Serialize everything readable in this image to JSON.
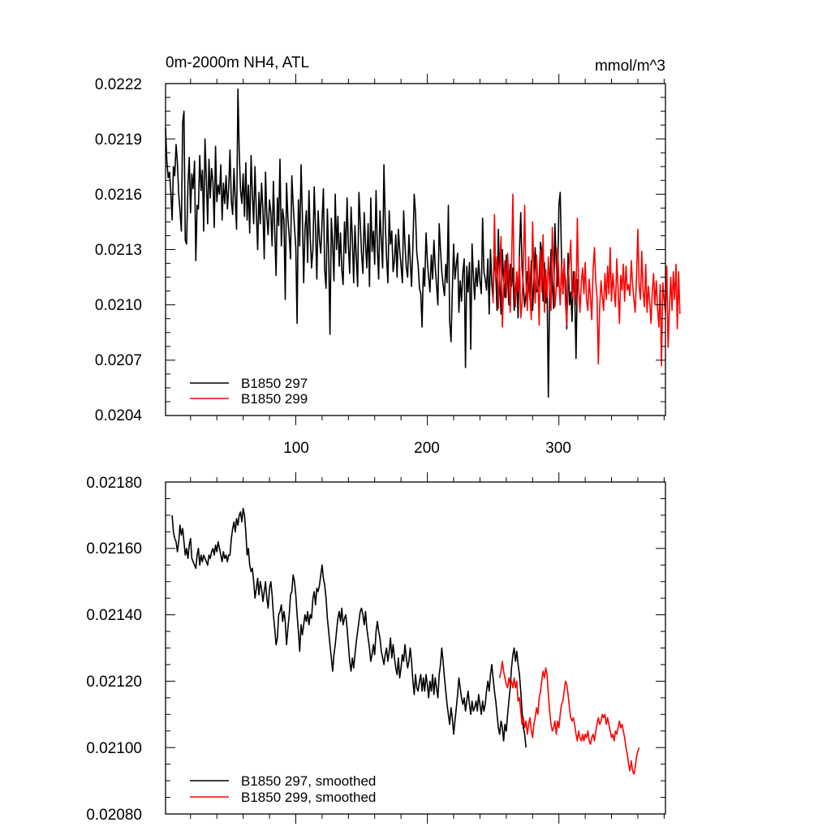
{
  "chart_data": [
    {
      "type": "line",
      "title": "0m-2000m NH4, ATL",
      "units": "mmol/m^3",
      "xlim": [
        1,
        381
      ],
      "ylim": [
        0.0204,
        0.0222
      ],
      "xticks": [
        100,
        200,
        300
      ],
      "yticks": [
        "0.0204",
        "0.0207",
        "0.0210",
        "0.0213",
        "0.0216",
        "0.0219",
        "0.0222"
      ],
      "legend_position": "bottom-left",
      "series": [
        {
          "name": "B1850 297",
          "color": "#000000",
          "x_start": 1,
          "x_step": 1,
          "values": [
            0.02196,
            0.02178,
            0.02169,
            0.02172,
            0.02161,
            0.02146,
            0.02175,
            0.0217,
            0.02187,
            0.02177,
            0.0216,
            0.02151,
            0.0214,
            0.02199,
            0.02205,
            0.02135,
            0.02133,
            0.02165,
            0.0218,
            0.0215,
            0.02171,
            0.02163,
            0.02178,
            0.02124,
            0.02154,
            0.02152,
            0.02181,
            0.02162,
            0.02173,
            0.0214,
            0.0219,
            0.02168,
            0.02144,
            0.02179,
            0.02158,
            0.02174,
            0.02167,
            0.02142,
            0.02186,
            0.02156,
            0.02165,
            0.0216,
            0.02176,
            0.02146,
            0.02166,
            0.02155,
            0.0217,
            0.02152,
            0.02163,
            0.02184,
            0.02156,
            0.02149,
            0.02174,
            0.02157,
            0.02141,
            0.02217,
            0.02183,
            0.02162,
            0.02155,
            0.02171,
            0.02148,
            0.02177,
            0.02146,
            0.02165,
            0.02139,
            0.02181,
            0.0216,
            0.02144,
            0.02175,
            0.0215,
            0.0213,
            0.02161,
            0.02144,
            0.02166,
            0.02151,
            0.02125,
            0.02172,
            0.02148,
            0.02138,
            0.02157,
            0.0215,
            0.02132,
            0.02167,
            0.02141,
            0.02116,
            0.02158,
            0.02143,
            0.02179,
            0.02132,
            0.02152,
            0.02146,
            0.02103,
            0.02166,
            0.02147,
            0.02137,
            0.02125,
            0.0217,
            0.02155,
            0.02142,
            0.02131,
            0.0209,
            0.02157,
            0.02132,
            0.02176,
            0.02149,
            0.02112,
            0.02141,
            0.02151,
            0.02123,
            0.02162,
            0.02137,
            0.0212,
            0.0213,
            0.02164,
            0.02142,
            0.02114,
            0.02151,
            0.02135,
            0.02128,
            0.02146,
            0.02163,
            0.02119,
            0.02109,
            0.02152,
            0.02128,
            0.02084,
            0.02147,
            0.02133,
            0.02113,
            0.0216,
            0.0213,
            0.02148,
            0.02121,
            0.02139,
            0.02119,
            0.02111,
            0.02145,
            0.02128,
            0.02158,
            0.02132,
            0.02117,
            0.02153,
            0.02136,
            0.02112,
            0.02143,
            0.02125,
            0.0211,
            0.02161,
            0.02145,
            0.02128,
            0.02117,
            0.0215,
            0.02133,
            0.0212,
            0.02144,
            0.0211,
            0.02158,
            0.02129,
            0.0214,
            0.02122,
            0.02162,
            0.02131,
            0.02114,
            0.02151,
            0.02135,
            0.0212,
            0.02176,
            0.02145,
            0.02126,
            0.02112,
            0.02151,
            0.02133,
            0.0214,
            0.02118,
            0.02124,
            0.02138,
            0.02115,
            0.02141,
            0.0213,
            0.02121,
            0.02112,
            0.02151,
            0.02133,
            0.0212,
            0.02115,
            0.02138,
            0.02124,
            0.0211,
            0.02132,
            0.0216,
            0.0215,
            0.02128,
            0.02122,
            0.02109,
            0.02106,
            0.02088,
            0.0212,
            0.0211,
            0.02139,
            0.02124,
            0.02115,
            0.02107,
            0.02127,
            0.02114,
            0.02135,
            0.02121,
            0.02111,
            0.021,
            0.02144,
            0.0213,
            0.02118,
            0.02111,
            0.02105,
            0.02122,
            0.02112,
            0.02154,
            0.02091,
            0.0208,
            0.02108,
            0.02133,
            0.02114,
            0.02122,
            0.02128,
            0.02096,
            0.02113,
            0.02102,
            0.02118,
            0.02125,
            0.02066,
            0.02121,
            0.02107,
            0.02123,
            0.02076,
            0.02133,
            0.02116,
            0.02103,
            0.0212,
            0.0211,
            0.02124,
            0.02113,
            0.02106,
            0.02147,
            0.02118,
            0.02114,
            0.02108,
            0.02125,
            0.02095,
            0.0213,
            0.02112,
            0.02103,
            0.02126,
            0.02117,
            0.02097,
            0.02141,
            0.02114,
            0.02095,
            0.0213,
            0.02113,
            0.02104,
            0.02127,
            0.02117,
            0.021,
            0.02122,
            0.0211,
            0.0212,
            0.02097,
            0.02108,
            0.02116,
            0.02093,
            0.02129,
            0.0215,
            0.0212,
            0.0211,
            0.02099,
            0.02106,
            0.02118,
            0.02111,
            0.02103,
            0.02124,
            0.02097,
            0.02113,
            0.02131,
            0.02107,
            0.02108,
            0.02113,
            0.02134,
            0.02129,
            0.02102,
            0.02123,
            0.02101,
            0.02111,
            0.0205,
            0.02106,
            0.0213,
            0.02112,
            0.02098,
            0.02144,
            0.02122,
            0.0211,
            0.02154,
            0.02161,
            0.02126,
            0.02106,
            0.0212,
            0.02113,
            0.02087,
            0.02128,
            0.021,
            0.02107,
            0.02091,
            0.02118,
            0.02109,
            0.02071,
            0.02114
          ]
        },
        {
          "name": "B1850 299",
          "color": "#ff0000",
          "x_start": 250,
          "x_step": 1,
          "values": [
            0.02101,
            0.02149,
            0.02115,
            0.02126,
            0.02098,
            0.02117,
            0.02137,
            0.02088,
            0.0211,
            0.02124,
            0.02104,
            0.02128,
            0.02114,
            0.02096,
            0.02121,
            0.0216,
            0.02112,
            0.02099,
            0.02118,
            0.02107,
            0.02126,
            0.02093,
            0.02101,
            0.0212,
            0.02154,
            0.02112,
            0.02097,
            0.02126,
            0.02105,
            0.02092,
            0.02145,
            0.02118,
            0.02101,
            0.02127,
            0.02113,
            0.02089,
            0.0213,
            0.02107,
            0.02138,
            0.02096,
            0.02119,
            0.02104,
            0.02126,
            0.02111,
            0.02097,
            0.02142,
            0.0212,
            0.02099,
            0.02109,
            0.02131,
            0.02114,
            0.021,
            0.02122,
            0.02107,
            0.02125,
            0.02101,
            0.02089,
            0.02115,
            0.02123,
            0.02135,
            0.02104,
            0.02108,
            0.02118,
            0.021,
            0.02147,
            0.0211,
            0.02096,
            0.02112,
            0.0212,
            0.02106,
            0.02123,
            0.02103,
            0.02097,
            0.02114,
            0.02104,
            0.02092,
            0.02119,
            0.02131,
            0.02113,
            0.02104,
            0.02068,
            0.02098,
            0.02113,
            0.02104,
            0.02097,
            0.02117,
            0.02103,
            0.02121,
            0.02106,
            0.02131,
            0.02102,
            0.02117,
            0.02107,
            0.02099,
            0.02125,
            0.02109,
            0.0209,
            0.02116,
            0.02108,
            0.02122,
            0.02102,
            0.02121,
            0.02108,
            0.02111,
            0.02105,
            0.02124,
            0.02111,
            0.02103,
            0.02096,
            0.02115,
            0.02141,
            0.0211,
            0.02103,
            0.02129,
            0.02108,
            0.02099,
            0.02122,
            0.02096,
            0.0211,
            0.02102,
            0.0209,
            0.02107,
            0.02117,
            0.021,
            0.02113,
            0.02098,
            0.02088,
            0.02111,
            0.02067,
            0.02112,
            0.02103,
            0.02096,
            0.02121,
            0.02077,
            0.02098,
            0.02115,
            0.02097,
            0.02118,
            0.02103,
            0.02122,
            0.02087,
            0.02118,
            0.02095
          ]
        }
      ]
    },
    {
      "type": "line",
      "xlim": [
        1,
        381
      ],
      "ylim": [
        0.0208,
        0.0218
      ],
      "yticks": [
        "0.02080",
        "0.02100",
        "0.02120",
        "0.02140",
        "0.02160",
        "0.02180"
      ],
      "legend_position": "bottom-left",
      "series": [
        {
          "name": "B1850 297, smoothed",
          "color": "#000000",
          "x_start": 6,
          "x_step": 1,
          "values": [
            0.0217,
            0.02165,
            0.02163,
            0.02162,
            0.02159,
            0.02162,
            0.02167,
            0.02164,
            0.02166,
            0.02162,
            0.02158,
            0.0216,
            0.02157,
            0.02161,
            0.02163,
            0.02157,
            0.02156,
            0.02155,
            0.02154,
            0.02158,
            0.0216,
            0.02155,
            0.02158,
            0.02156,
            0.02158,
            0.02157,
            0.02156,
            0.02155,
            0.02158,
            0.02157,
            0.02159,
            0.0216,
            0.02158,
            0.02161,
            0.02159,
            0.02162,
            0.0216,
            0.02158,
            0.02156,
            0.02159,
            0.02157,
            0.02158,
            0.02156,
            0.02158,
            0.02158,
            0.02163,
            0.02166,
            0.02168,
            0.02165,
            0.02169,
            0.02167,
            0.0217,
            0.02171,
            0.02168,
            0.02172,
            0.0217,
            0.02165,
            0.02158,
            0.0216,
            0.02155,
            0.02153,
            0.02154,
            0.0215,
            0.02145,
            0.02148,
            0.02151,
            0.02146,
            0.0215,
            0.02148,
            0.02144,
            0.02147,
            0.0215,
            0.02145,
            0.02142,
            0.02148,
            0.0215,
            0.02146,
            0.0214,
            0.02136,
            0.02131,
            0.02133,
            0.0214,
            0.02141,
            0.02143,
            0.02138,
            0.02141,
            0.02138,
            0.02131,
            0.02136,
            0.0214,
            0.02146,
            0.02147,
            0.02152,
            0.0215,
            0.02146,
            0.0214,
            0.02135,
            0.02129,
            0.02137,
            0.02134,
            0.02137,
            0.0214,
            0.02138,
            0.02141,
            0.02137,
            0.0214,
            0.02139,
            0.02145,
            0.02147,
            0.02143,
            0.02148,
            0.02147,
            0.02149,
            0.02152,
            0.02155,
            0.02151,
            0.02149,
            0.02145,
            0.02139,
            0.02135,
            0.02131,
            0.02127,
            0.02123,
            0.02128,
            0.02131,
            0.02135,
            0.02139,
            0.02141,
            0.02138,
            0.02142,
            0.02137,
            0.02139,
            0.0214,
            0.02136,
            0.02131,
            0.02126,
            0.02123,
            0.02127,
            0.02124,
            0.02128,
            0.02132,
            0.02135,
            0.02138,
            0.02141,
            0.02142,
            0.0214,
            0.02137,
            0.02141,
            0.02136,
            0.02133,
            0.0213,
            0.02126,
            0.02128,
            0.02131,
            0.02128,
            0.02135,
            0.02138,
            0.02135,
            0.02133,
            0.02129,
            0.02127,
            0.02125,
            0.02128,
            0.0213,
            0.02126,
            0.02129,
            0.02133,
            0.02127,
            0.02131,
            0.02127,
            0.02124,
            0.02122,
            0.02127,
            0.02121,
            0.02124,
            0.02128,
            0.02126,
            0.02131,
            0.02127,
            0.02124,
            0.02126,
            0.0213,
            0.02126,
            0.0212,
            0.02116,
            0.02122,
            0.02118,
            0.02117,
            0.0212,
            0.02122,
            0.02117,
            0.02121,
            0.02117,
            0.02122,
            0.02119,
            0.02115,
            0.0212,
            0.02117,
            0.02122,
            0.02116,
            0.02121,
            0.02118,
            0.02115,
            0.02122,
            0.02125,
            0.0213,
            0.02126,
            0.02121,
            0.02117,
            0.02113,
            0.0211,
            0.02107,
            0.02112,
            0.02109,
            0.02104,
            0.02108,
            0.02112,
            0.02116,
            0.02121,
            0.02118,
            0.02115,
            0.02113,
            0.02115,
            0.02111,
            0.02114,
            0.02117,
            0.02113,
            0.0211,
            0.02114,
            0.02111,
            0.02112,
            0.02114,
            0.02111,
            0.02116,
            0.02113,
            0.0211,
            0.02114,
            0.02111,
            0.02113,
            0.02117,
            0.0212,
            0.02117,
            0.02122,
            0.02125,
            0.02121,
            0.02117,
            0.02114,
            0.0211,
            0.02106,
            0.02104,
            0.02108,
            0.02106,
            0.02102,
            0.02107,
            0.02105,
            0.0211,
            0.02114,
            0.02118,
            0.02124,
            0.02128,
            0.0213,
            0.02126,
            0.02129,
            0.02125,
            0.02122,
            0.02117,
            0.02111,
            0.02106,
            0.02104,
            0.021
          ]
        },
        {
          "name": "B1850 299, smoothed",
          "color": "#ff0000",
          "x_start": 255,
          "x_step": 1,
          "values": [
            0.02121,
            0.02123,
            0.02126,
            0.02123,
            0.02121,
            0.02119,
            0.02118,
            0.02121,
            0.02119,
            0.0212,
            0.02118,
            0.02121,
            0.02118,
            0.0212,
            0.02114,
            0.02115,
            0.02111,
            0.02107,
            0.02109,
            0.02106,
            0.02108,
            0.02104,
            0.02107,
            0.02109,
            0.02105,
            0.02103,
            0.02107,
            0.02109,
            0.02112,
            0.0211,
            0.02115,
            0.02117,
            0.0212,
            0.02123,
            0.02121,
            0.02124,
            0.02122,
            0.02116,
            0.02111,
            0.02107,
            0.02105,
            0.02106,
            0.02108,
            0.02104,
            0.02108,
            0.02106,
            0.0211,
            0.02113,
            0.02114,
            0.02117,
            0.0212,
            0.02119,
            0.02116,
            0.02112,
            0.02109,
            0.02108,
            0.02109,
            0.02107,
            0.02104,
            0.02102,
            0.02105,
            0.02103,
            0.02102,
            0.02104,
            0.02102,
            0.02104,
            0.02103,
            0.02105,
            0.02102,
            0.02101,
            0.02103,
            0.02104,
            0.02102,
            0.02105,
            0.02107,
            0.02109,
            0.02107,
            0.02108,
            0.0211,
            0.02109,
            0.0211,
            0.02107,
            0.02109,
            0.02107,
            0.02105,
            0.02103,
            0.02104,
            0.02102,
            0.02105,
            0.02104,
            0.02106,
            0.02108,
            0.02106,
            0.02107,
            0.02105,
            0.02103,
            0.021,
            0.02098,
            0.02095,
            0.02093,
            0.02096,
            0.02093,
            0.02092,
            0.02094,
            0.02097,
            0.02099,
            0.021
          ]
        }
      ]
    }
  ]
}
